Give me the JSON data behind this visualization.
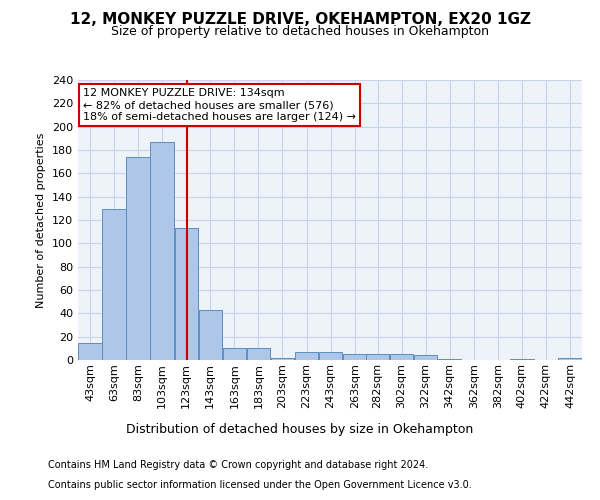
{
  "title1": "12, MONKEY PUZZLE DRIVE, OKEHAMPTON, EX20 1GZ",
  "title2": "Size of property relative to detached houses in Okehampton",
  "xlabel": "Distribution of detached houses by size in Okehampton",
  "ylabel": "Number of detached properties",
  "bar_edges": [
    43,
    63,
    83,
    103,
    123,
    143,
    163,
    183,
    203,
    223,
    243,
    263,
    282,
    302,
    322,
    342,
    362,
    382,
    402,
    422,
    442
  ],
  "bar_heights": [
    15,
    129,
    174,
    187,
    113,
    43,
    10,
    10,
    2,
    7,
    7,
    5,
    5,
    5,
    4,
    1,
    0,
    0,
    1,
    0,
    2
  ],
  "bar_color": "#aec6e8",
  "bar_edgecolor": "#5a8fc2",
  "property_size": 134,
  "vline_color": "#cc0000",
  "annotation_line1": "12 MONKEY PUZZLE DRIVE: 134sqm",
  "annotation_line2": "← 82% of detached houses are smaller (576)",
  "annotation_line3": "18% of semi-detached houses are larger (124) →",
  "annotation_box_edgecolor": "#cc0000",
  "ylim": [
    0,
    240
  ],
  "yticks": [
    0,
    20,
    40,
    60,
    80,
    100,
    120,
    140,
    160,
    180,
    200,
    220,
    240
  ],
  "footer1": "Contains HM Land Registry data © Crown copyright and database right 2024.",
  "footer2": "Contains public sector information licensed under the Open Government Licence v3.0.",
  "bg_color": "#eef2f9",
  "grid_color": "#c8d4e8",
  "title1_fontsize": 11,
  "title2_fontsize": 9,
  "ylabel_fontsize": 8,
  "xlabel_fontsize": 9,
  "tick_fontsize": 8,
  "footer_fontsize": 7,
  "annotation_fontsize": 8
}
